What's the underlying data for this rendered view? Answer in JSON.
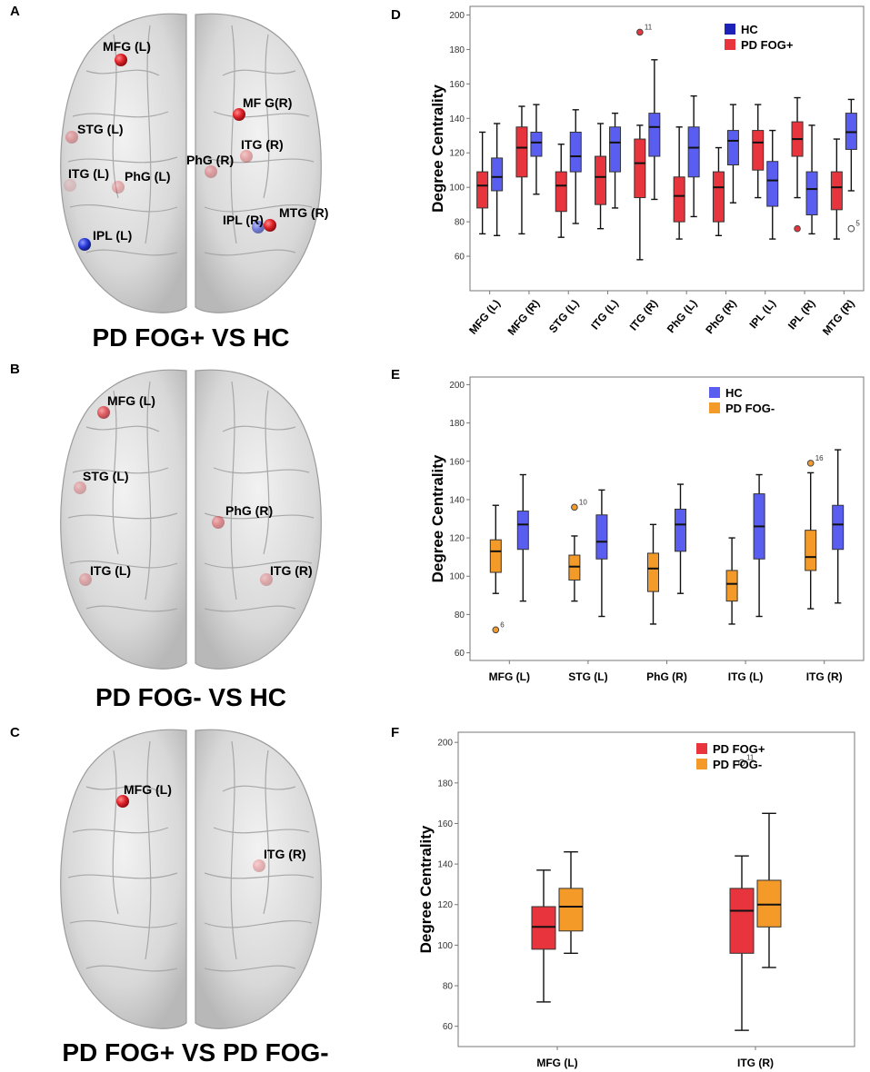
{
  "colors": {
    "hc": "#5a5ef0",
    "hc_legend_d": "#1c22b8",
    "pd_fog_plus": "#e8343d",
    "pd_fog_minus": "#f49a28",
    "brain_fill": "#d6d6d6",
    "brain_line": "#9c9c9c",
    "node_red": "#e0232b",
    "node_blue": "#2a3ad8"
  },
  "brain_panels": [
    {
      "letter": "A",
      "caption": "PD FOG+ VS HC",
      "nodes": [
        {
          "label": "MFG (L)",
          "color": "red",
          "strength": 1.0
        },
        {
          "label": "MF G(R)",
          "color": "red",
          "strength": 1.0
        },
        {
          "label": "STG (L)",
          "color": "red",
          "strength": 0.35
        },
        {
          "label": "ITG (R)",
          "color": "red",
          "strength": 0.35
        },
        {
          "label": "PhG (R)",
          "color": "red",
          "strength": 0.35
        },
        {
          "label": "ITG (L)",
          "color": "red",
          "strength": 0.15
        },
        {
          "label": "PhG (L)",
          "color": "red",
          "strength": 0.3
        },
        {
          "label": "IPL (R)",
          "color": "blue",
          "strength": 0.6
        },
        {
          "label": "MTG (R)",
          "color": "red",
          "strength": 1.0
        },
        {
          "label": "IPL (L)",
          "color": "blue",
          "strength": 1.0
        }
      ]
    },
    {
      "letter": "B",
      "caption": "PD FOG- VS HC",
      "nodes": [
        {
          "label": "MFG (L)",
          "color": "red",
          "strength": 0.7
        },
        {
          "label": "STG (L)",
          "color": "red",
          "strength": 0.3
        },
        {
          "label": "PhG (R)",
          "color": "red",
          "strength": 0.45
        },
        {
          "label": "ITG (L)",
          "color": "red",
          "strength": 0.3
        },
        {
          "label": "ITG (R)",
          "color": "red",
          "strength": 0.3
        }
      ]
    },
    {
      "letter": "C",
      "caption": "PD FOG+ VS PD FOG-",
      "nodes": [
        {
          "label": "MFG (L)",
          "color": "red",
          "strength": 1.0
        },
        {
          "label": "ITG (R)",
          "color": "red",
          "strength": 0.3
        }
      ]
    }
  ],
  "chart_data": [
    {
      "panel": "D",
      "type": "boxplot",
      "ylabel": "Degree Centrality",
      "ylim": [
        40,
        205
      ],
      "yticks": [
        60,
        80,
        100,
        120,
        140,
        160,
        180,
        200
      ],
      "categories": [
        "MFG (L)",
        "MFG (R)",
        "STG (L)",
        "ITG (L)",
        "ITG (R)",
        "PhG (L)",
        "PhG (R)",
        "IPL (L)",
        "IPL (R)",
        "MTG (R)"
      ],
      "legend": {
        "position": "top-right",
        "entries": [
          {
            "name": "HC",
            "color": "#1c22b8"
          },
          {
            "name": "PD FOG+",
            "color": "#e8343d"
          }
        ]
      },
      "series": [
        {
          "name": "PD FOG+",
          "color": "#e8343d",
          "boxes": [
            {
              "min": 73,
              "q1": 88,
              "median": 101,
              "q3": 109,
              "max": 132
            },
            {
              "min": 73,
              "q1": 106,
              "median": 123,
              "q3": 135,
              "max": 147
            },
            {
              "min": 71,
              "q1": 86,
              "median": 101,
              "q3": 109,
              "max": 125
            },
            {
              "min": 76,
              "q1": 90,
              "median": 106,
              "q3": 118,
              "max": 137
            },
            {
              "min": 58,
              "q1": 94,
              "median": 114,
              "q3": 128,
              "max": 136
            },
            {
              "min": 70,
              "q1": 80,
              "median": 95,
              "q3": 106,
              "max": 135
            },
            {
              "min": 72,
              "q1": 80,
              "median": 100,
              "q3": 109,
              "max": 123
            },
            {
              "min": 94,
              "q1": 110,
              "median": 126,
              "q3": 133,
              "max": 148
            },
            {
              "min": 94,
              "q1": 118,
              "median": 128,
              "q3": 138,
              "max": 152
            },
            {
              "min": 70,
              "q1": 87,
              "median": 100,
              "q3": 109,
              "max": 128
            }
          ]
        },
        {
          "name": "HC",
          "color": "#5a5ef0",
          "boxes": [
            {
              "min": 72,
              "q1": 98,
              "median": 106,
              "q3": 117,
              "max": 137
            },
            {
              "min": 96,
              "q1": 118,
              "median": 126,
              "q3": 132,
              "max": 148
            },
            {
              "min": 79,
              "q1": 109,
              "median": 118,
              "q3": 132,
              "max": 145
            },
            {
              "min": 88,
              "q1": 109,
              "median": 126,
              "q3": 135,
              "max": 143
            },
            {
              "min": 93,
              "q1": 118,
              "median": 135,
              "q3": 143,
              "max": 174
            },
            {
              "min": 83,
              "q1": 106,
              "median": 123,
              "q3": 135,
              "max": 153
            },
            {
              "min": 91,
              "q1": 113,
              "median": 127,
              "q3": 133,
              "max": 148
            },
            {
              "min": 70,
              "q1": 89,
              "median": 104,
              "q3": 115,
              "max": 133
            },
            {
              "min": 73,
              "q1": 84,
              "median": 99,
              "q3": 109,
              "max": 136
            },
            {
              "min": 98,
              "q1": 122,
              "median": 132,
              "q3": 143,
              "max": 151
            }
          ]
        }
      ],
      "outliers": [
        {
          "category": "ITG (R)",
          "series": "PD FOG+",
          "value": 190,
          "label": "11",
          "style": "filled"
        },
        {
          "category": "IPL (R)",
          "series": "PD FOG+",
          "value": 76,
          "label": "",
          "style": "filled"
        },
        {
          "category": "MTG (R)",
          "series": "HC",
          "value": 76,
          "label": "5",
          "style": "open"
        }
      ]
    },
    {
      "panel": "E",
      "type": "boxplot",
      "ylabel": "Degree Centrality",
      "ylim": [
        56,
        204
      ],
      "yticks": [
        60,
        80,
        100,
        120,
        140,
        160,
        180,
        200
      ],
      "categories": [
        "MFG (L)",
        "STG (L)",
        "PhG (R)",
        "ITG (L)",
        "ITG (R)"
      ],
      "legend": {
        "position": "top-right",
        "entries": [
          {
            "name": "HC",
            "color": "#5a5ef0"
          },
          {
            "name": "PD FOG-",
            "color": "#f49a28"
          }
        ]
      },
      "series": [
        {
          "name": "PD FOG-",
          "color": "#f49a28",
          "boxes": [
            {
              "min": 91,
              "q1": 102,
              "median": 113,
              "q3": 119,
              "max": 137
            },
            {
              "min": 87,
              "q1": 98,
              "median": 105,
              "q3": 111,
              "max": 121
            },
            {
              "min": 75,
              "q1": 92,
              "median": 104,
              "q3": 112,
              "max": 127
            },
            {
              "min": 75,
              "q1": 87,
              "median": 96,
              "q3": 103,
              "max": 120
            },
            {
              "min": 83,
              "q1": 103,
              "median": 110,
              "q3": 124,
              "max": 154
            }
          ]
        },
        {
          "name": "HC",
          "color": "#5a5ef0",
          "boxes": [
            {
              "min": 87,
              "q1": 114,
              "median": 127,
              "q3": 134,
              "max": 153
            },
            {
              "min": 79,
              "q1": 109,
              "median": 118,
              "q3": 132,
              "max": 145
            },
            {
              "min": 91,
              "q1": 113,
              "median": 127,
              "q3": 135,
              "max": 148
            },
            {
              "min": 79,
              "q1": 109,
              "median": 126,
              "q3": 143,
              "max": 153
            },
            {
              "min": 86,
              "q1": 114,
              "median": 127,
              "q3": 137,
              "max": 166
            }
          ]
        }
      ],
      "outliers": [
        {
          "category": "MFG (L)",
          "series": "PD FOG-",
          "value": 72,
          "label": "6",
          "style": "filled"
        },
        {
          "category": "STG (L)",
          "series": "PD FOG-",
          "value": 136,
          "label": "10",
          "style": "filled"
        },
        {
          "category": "ITG (R)",
          "series": "PD FOG-",
          "value": 159,
          "label": "16",
          "style": "filled"
        }
      ]
    },
    {
      "panel": "F",
      "type": "boxplot",
      "ylabel": "Degree Centrality",
      "ylim": [
        50,
        205
      ],
      "yticks": [
        60,
        80,
        100,
        120,
        140,
        160,
        180,
        200
      ],
      "categories": [
        "MFG (L)",
        "ITG (R)"
      ],
      "legend": {
        "position": "top-right",
        "entries": [
          {
            "name": "PD FOG+",
            "color": "#e8343d"
          },
          {
            "name": "PD FOG-",
            "color": "#f49a28"
          }
        ]
      },
      "series": [
        {
          "name": "PD FOG+",
          "color": "#e8343d",
          "boxes": [
            {
              "min": 72,
              "q1": 98,
              "median": 109,
              "q3": 119,
              "max": 137
            },
            {
              "min": 58,
              "q1": 96,
              "median": 117,
              "q3": 128,
              "max": 144
            }
          ]
        },
        {
          "name": "PD FOG-",
          "color": "#f49a28",
          "boxes": [
            {
              "min": 96,
              "q1": 107,
              "median": 119,
              "q3": 128,
              "max": 146
            },
            {
              "min": 89,
              "q1": 109,
              "median": 120,
              "q3": 132,
              "max": 165
            }
          ]
        }
      ],
      "outliers": [
        {
          "category": "ITG (R)",
          "series": "PD FOG+",
          "value": 190,
          "label": "11",
          "style": "open"
        }
      ]
    }
  ]
}
